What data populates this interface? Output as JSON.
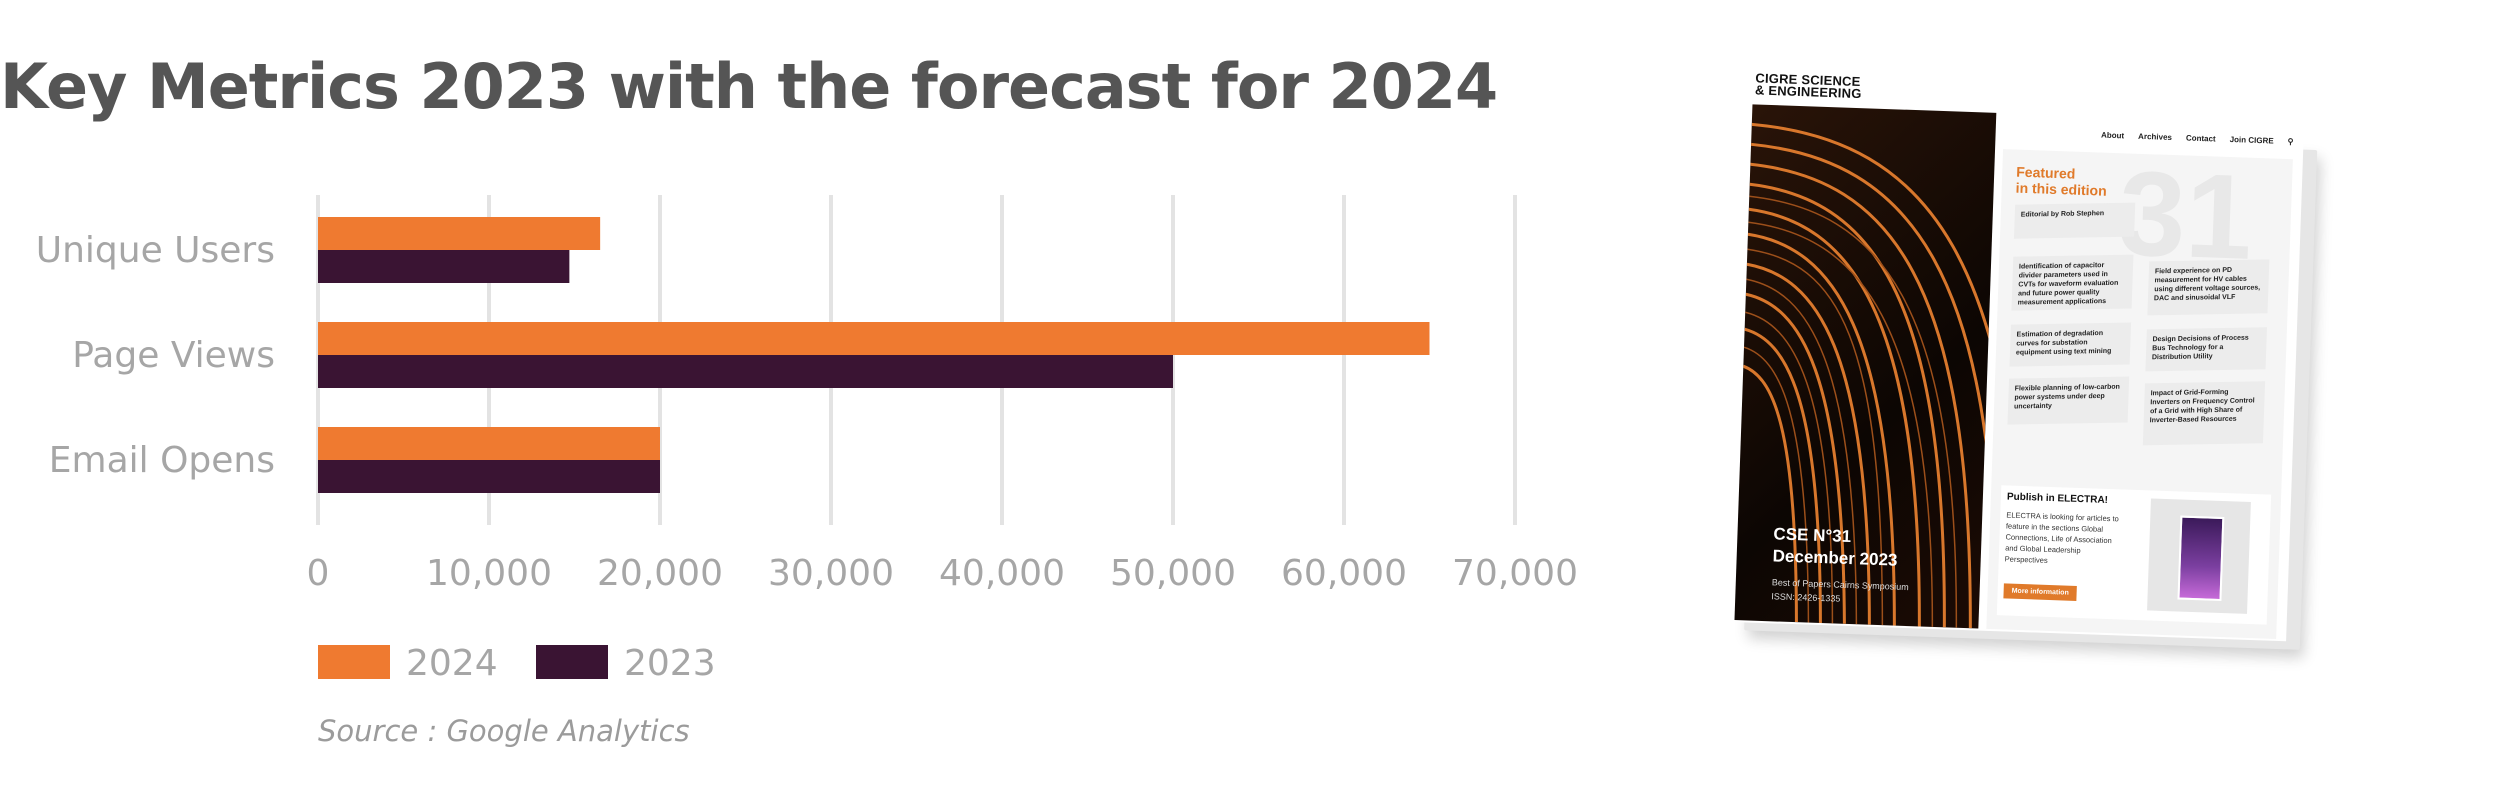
{
  "chart_data": {
    "type": "bar",
    "orientation": "horizontal",
    "title": "Key Metrics 2023 with the forecast for 2024",
    "categories": [
      "Unique Users",
      "Page Views",
      "Email Opens"
    ],
    "series": [
      {
        "name": "2024",
        "values": [
          16500,
          65000,
          20000
        ],
        "color": "#ef7a30"
      },
      {
        "name": "2023",
        "values": [
          14700,
          50000,
          20000
        ],
        "color": "#3a1433"
      }
    ],
    "xlim": [
      0,
      70000
    ],
    "xticks": [
      0,
      10000,
      20000,
      30000,
      40000,
      50000,
      60000,
      70000
    ],
    "xtick_labels": [
      "0",
      "10,000",
      "20,000",
      "30,000",
      "40,000",
      "50,000",
      "60,000",
      "70,000"
    ],
    "grid": true,
    "legend": "bottom-left",
    "source": "Source : Google Analytics"
  },
  "magazine": {
    "logo_line1": "CIGRE SCIENCE",
    "logo_line2": "& ENGINEERING",
    "nav": [
      "About",
      "Archives",
      "Contact",
      "Join CIGRE"
    ],
    "issue": "CSE N°31",
    "date": "December 2023",
    "subtitle": "Best of Papers Cairns Symposium",
    "issn": "ISSN: 2426-1335",
    "brand": "cigre",
    "featured_line1": "Featured",
    "featured_line2": "in this edition",
    "big_number": "31",
    "editorial": "Editorial by Rob Stephen",
    "articles": [
      "Identification of capacitor divider parameters used in CVTs for waveform evaluation and future power quality measurement applications",
      "Field experience on PD measurement for HV cables using different voltage sources, DAC and sinusoidal VLF",
      "Estimation of degradation curves for substation equipment using text mining",
      "Design Decisions of Process Bus Technology for a Distribution Utility",
      "Flexible planning of low-carbon power systems under deep uncertainty",
      "Impact of Grid-Forming Inverters on Frequency Control of a Grid with High Share of Inverter-Based Resources"
    ],
    "publish_title": "Publish in ELECTRA!",
    "publish_text": "ELECTRA is looking for articles to feature in the sections Global Connections, Life of Association and Global Leadership Perspectives",
    "button": "More information"
  }
}
